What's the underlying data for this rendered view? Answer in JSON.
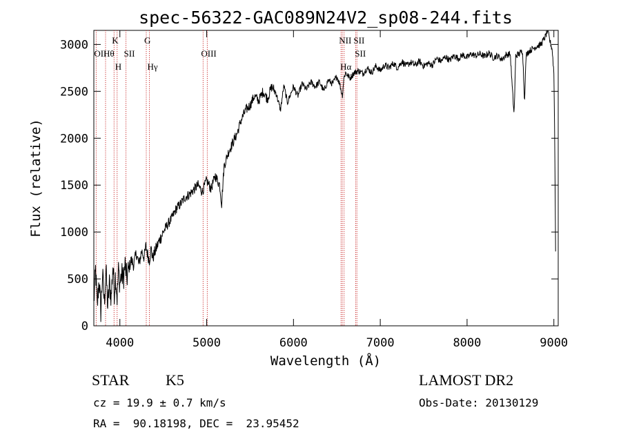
{
  "chart_data": {
    "type": "line",
    "title": "spec-56322-GAC089N24V2_sp08-244.fits",
    "xlabel": "Wavelength (Å)",
    "ylabel": "Flux (relative)",
    "xlim": [
      3700,
      9050
    ],
    "ylim": [
      0,
      3150
    ],
    "xticks": [
      {
        "value": 4000,
        "label": "4000"
      },
      {
        "value": 5000,
        "label": "5000"
      },
      {
        "value": 6000,
        "label": "6000"
      },
      {
        "value": 7000,
        "label": "7000"
      },
      {
        "value": 8000,
        "label": "8000"
      },
      {
        "value": 9000,
        "label": "9000"
      }
    ],
    "yticks": [
      {
        "value": 0,
        "label": "0"
      },
      {
        "value": 500,
        "label": "500"
      },
      {
        "value": 1000,
        "label": "1000"
      },
      {
        "value": 1500,
        "label": "1500"
      },
      {
        "value": 2000,
        "label": "2000"
      },
      {
        "value": 2500,
        "label": "2500"
      },
      {
        "value": 3000,
        "label": "3000"
      }
    ],
    "line_color": "#000000",
    "marker_color": "#cc3333",
    "series": [
      {
        "name": "flux",
        "x": [
          3700,
          3720,
          3740,
          3760,
          3780,
          3800,
          3820,
          3840,
          3860,
          3880,
          3900,
          3920,
          3935,
          3950,
          3968,
          3985,
          4000,
          4020,
          4040,
          4060,
          4080,
          4100,
          4130,
          4160,
          4190,
          4220,
          4250,
          4280,
          4300,
          4320,
          4340,
          4360,
          4380,
          4400,
          4450,
          4500,
          4550,
          4600,
          4650,
          4700,
          4750,
          4800,
          4850,
          4900,
          4950,
          5000,
          5050,
          5100,
          5150,
          5172,
          5200,
          5250,
          5300,
          5350,
          5400,
          5450,
          5500,
          5550,
          5600,
          5650,
          5700,
          5750,
          5800,
          5850,
          5890,
          5930,
          6000,
          6050,
          6100,
          6150,
          6200,
          6250,
          6300,
          6350,
          6400,
          6450,
          6500,
          6530,
          6563,
          6580,
          6600,
          6650,
          6700,
          6750,
          6800,
          6850,
          6900,
          6950,
          7000,
          7050,
          7100,
          7150,
          7200,
          7250,
          7300,
          7350,
          7400,
          7450,
          7500,
          7550,
          7600,
          7650,
          7700,
          7750,
          7800,
          7850,
          7900,
          7950,
          8000,
          8050,
          8100,
          8150,
          8200,
          8250,
          8300,
          8350,
          8400,
          8450,
          8498,
          8520,
          8542,
          8560,
          8600,
          8640,
          8662,
          8680,
          8700,
          8750,
          8800,
          8850,
          8900,
          8930,
          8950,
          8980,
          9000,
          9010,
          9020
        ],
        "y": [
          250,
          600,
          200,
          500,
          150,
          550,
          250,
          600,
          200,
          450,
          300,
          650,
          350,
          550,
          300,
          600,
          450,
          550,
          500,
          650,
          500,
          600,
          700,
          650,
          780,
          650,
          800,
          730,
          850,
          760,
          700,
          820,
          720,
          780,
          900,
          1000,
          1080,
          1150,
          1250,
          1300,
          1370,
          1400,
          1450,
          1500,
          1430,
          1550,
          1460,
          1600,
          1500,
          1300,
          1700,
          1850,
          1950,
          2050,
          2200,
          2300,
          2350,
          2450,
          2400,
          2500,
          2420,
          2550,
          2480,
          2300,
          2560,
          2380,
          2550,
          2450,
          2580,
          2520,
          2600,
          2550,
          2600,
          2500,
          2620,
          2580,
          2660,
          2590,
          2450,
          2640,
          2700,
          2640,
          2700,
          2720,
          2690,
          2750,
          2700,
          2770,
          2720,
          2780,
          2750,
          2800,
          2750,
          2820,
          2770,
          2810,
          2780,
          2820,
          2770,
          2800,
          2780,
          2850,
          2820,
          2870,
          2830,
          2880,
          2850,
          2890,
          2860,
          2900,
          2880,
          2900,
          2870,
          2910,
          2860,
          2880,
          2840,
          2890,
          2900,
          2550,
          2250,
          2880,
          2900,
          2930,
          2400,
          2880,
          2920,
          2950,
          2980,
          3000,
          3080,
          3150,
          3050,
          2950,
          2700,
          2000,
          800
        ]
      }
    ],
    "lines": [
      {
        "wave": 3727,
        "labels": [
          "OII"
        ]
      },
      {
        "wave": 3835,
        "labels": [
          "Hθ"
        ]
      },
      {
        "wave": 3933,
        "labels": [
          "K"
        ]
      },
      {
        "wave": 3968,
        "labels": [
          "H"
        ]
      },
      {
        "wave": 4070,
        "labels": [
          "SII"
        ]
      },
      {
        "wave": 4304,
        "labels": [
          "G"
        ]
      },
      {
        "wave": 4340,
        "labels": [
          "Hγ"
        ]
      },
      {
        "wave": 4959,
        "labels": [
          "OIII"
        ]
      },
      {
        "wave": 5007,
        "labels": []
      },
      {
        "wave": 6548,
        "labels": [
          "NII"
        ]
      },
      {
        "wave": 6563,
        "labels": [
          "Hα"
        ]
      },
      {
        "wave": 6583,
        "labels": []
      },
      {
        "wave": 6716,
        "labels": [
          "SII"
        ]
      },
      {
        "wave": 6731,
        "labels": [
          "SII"
        ]
      }
    ]
  },
  "info": {
    "class": "STAR",
    "subclass": "K5",
    "survey": "LAMOST DR2",
    "cz": "cz = 19.9 ± 0.7 km/s",
    "obs_date": "Obs-Date: 20130129",
    "coords": "RA =  90.18198, DEC =  23.95452"
  }
}
